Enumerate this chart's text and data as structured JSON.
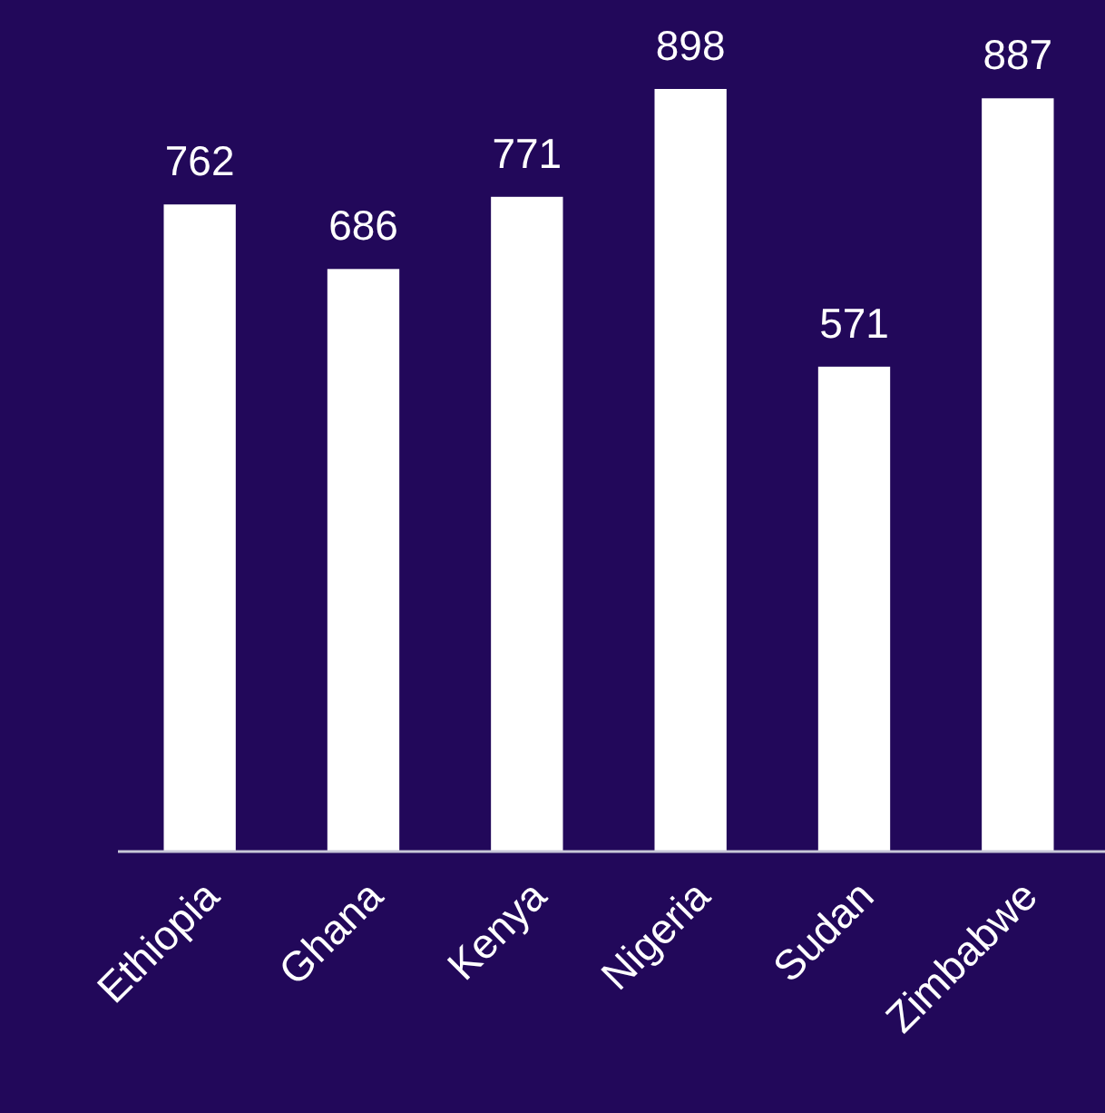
{
  "chart_data": {
    "type": "bar",
    "categories": [
      "Ethiopia",
      "Ghana",
      "Kenya",
      "Nigeria",
      "Sudan",
      "Zimbabwe"
    ],
    "values": [
      762,
      686,
      771,
      898,
      571,
      887
    ],
    "color": "#ffffff",
    "data_labels": true
  }
}
